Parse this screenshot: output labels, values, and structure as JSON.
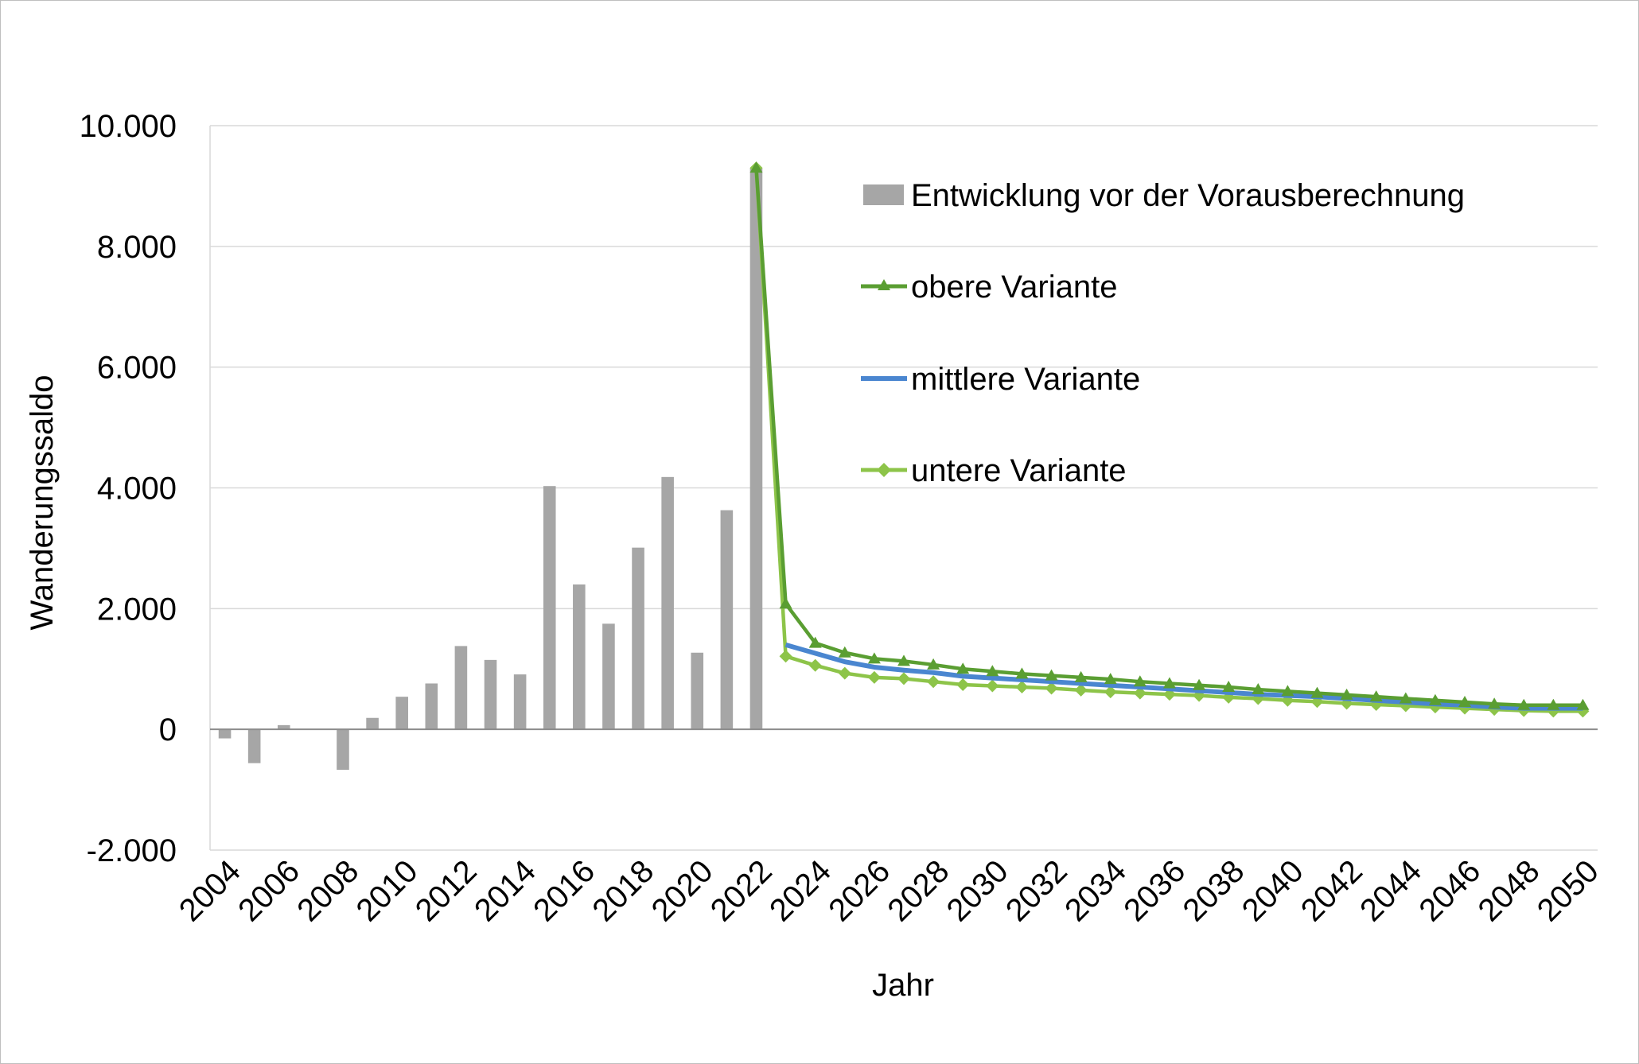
{
  "chart_data": {
    "type": "bar",
    "title": "",
    "xlabel": "Jahr",
    "ylabel": "Wanderungssaldo",
    "ylim": [
      -2000,
      10000
    ],
    "yticks": [
      -2000,
      0,
      2000,
      4000,
      6000,
      8000,
      10000
    ],
    "ytick_labels": [
      "-2.000",
      "0",
      "2.000",
      "4.000",
      "6.000",
      "8.000",
      "10.000"
    ],
    "x_range": [
      2004,
      2050
    ],
    "xticks": [
      2004,
      2006,
      2008,
      2010,
      2012,
      2014,
      2016,
      2018,
      2020,
      2022,
      2024,
      2026,
      2028,
      2030,
      2032,
      2034,
      2036,
      2038,
      2040,
      2042,
      2044,
      2046,
      2048,
      2050
    ],
    "grid": true,
    "legend_position": "top-right",
    "bars": {
      "name": "Entwicklung vor der Vorausberechnung",
      "color": "#a6a6a6",
      "x": [
        2004,
        2005,
        2006,
        2007,
        2008,
        2009,
        2010,
        2011,
        2012,
        2013,
        2014,
        2015,
        2016,
        2017,
        2018,
        2019,
        2020,
        2021,
        2022
      ],
      "values": [
        -150,
        -560,
        70,
        0,
        -670,
        190,
        540,
        760,
        1380,
        1150,
        910,
        4030,
        2400,
        1750,
        3010,
        4180,
        1270,
        3630,
        9300
      ]
    },
    "series": [
      {
        "name": "obere Variante",
        "color": "#5a9e32",
        "marker": "triangle",
        "x": [
          2022,
          2023,
          2024,
          2025,
          2026,
          2027,
          2028,
          2029,
          2030,
          2031,
          2032,
          2033,
          2034,
          2035,
          2036,
          2037,
          2038,
          2039,
          2040,
          2041,
          2042,
          2043,
          2044,
          2045,
          2046,
          2047,
          2048,
          2049,
          2050
        ],
        "values": [
          9300,
          2080,
          1430,
          1270,
          1170,
          1130,
          1070,
          1000,
          960,
          920,
          890,
          860,
          830,
          790,
          760,
          730,
          700,
          660,
          630,
          600,
          570,
          540,
          510,
          480,
          450,
          420,
          400,
          400,
          400
        ]
      },
      {
        "name": "mittlere Variante",
        "color": "#4a86d0",
        "marker": "none",
        "x": [
          2023,
          2024,
          2025,
          2026,
          2027,
          2028,
          2029,
          2030,
          2031,
          2032,
          2033,
          2034,
          2035,
          2036,
          2037,
          2038,
          2039,
          2040,
          2041,
          2042,
          2043,
          2044,
          2045,
          2046,
          2047,
          2048,
          2049,
          2050
        ],
        "values": [
          1400,
          1260,
          1120,
          1030,
          980,
          940,
          880,
          850,
          820,
          790,
          760,
          730,
          700,
          670,
          640,
          610,
          580,
          560,
          540,
          510,
          480,
          450,
          420,
          400,
          370,
          350,
          350,
          350
        ]
      },
      {
        "name": "untere Variante",
        "color": "#8dc449",
        "marker": "diamond",
        "x": [
          2022,
          2023,
          2024,
          2025,
          2026,
          2027,
          2028,
          2029,
          2030,
          2031,
          2032,
          2033,
          2034,
          2035,
          2036,
          2037,
          2038,
          2039,
          2040,
          2041,
          2042,
          2043,
          2044,
          2045,
          2046,
          2047,
          2048,
          2049,
          2050
        ],
        "values": [
          9300,
          1210,
          1060,
          930,
          860,
          840,
          790,
          740,
          720,
          700,
          680,
          650,
          620,
          600,
          580,
          560,
          530,
          510,
          480,
          460,
          430,
          410,
          390,
          370,
          350,
          330,
          310,
          300,
          300
        ]
      }
    ]
  }
}
